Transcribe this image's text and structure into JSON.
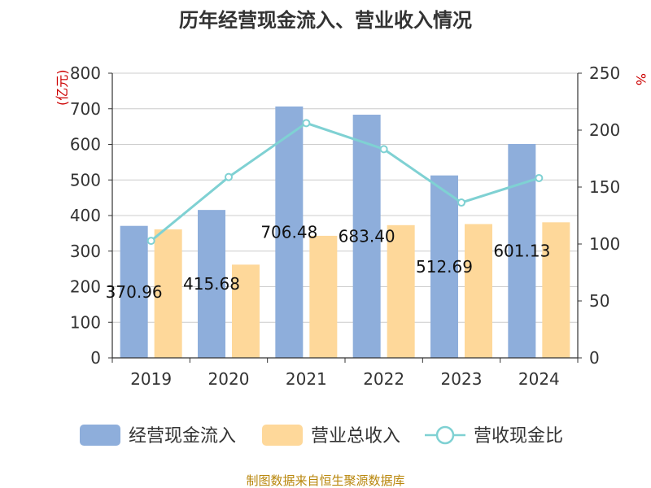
{
  "chart_data": {
    "type": "bar",
    "title": "历年经营现金流入、营业收入情况",
    "categories": [
      "2019",
      "2020",
      "2021",
      "2022",
      "2023",
      "2024"
    ],
    "y_left": {
      "unit": "(亿元)",
      "ylim": [
        0,
        800
      ],
      "ticks": [
        0,
        100,
        200,
        300,
        400,
        500,
        600,
        700,
        800
      ]
    },
    "y_right": {
      "unit": "%",
      "ylim": [
        0,
        250
      ],
      "ticks": [
        0,
        50,
        100,
        150,
        200,
        250
      ]
    },
    "series": [
      {
        "name": "经营现金流入",
        "type": "bar",
        "axis": "left",
        "color": "#8eaedb",
        "values": [
          370.96,
          415.68,
          706.48,
          683.4,
          512.69,
          601.13
        ],
        "labels": [
          "370.96",
          "415.68",
          "706.48",
          "683.40",
          "512.69",
          "601.13"
        ]
      },
      {
        "name": "营业总收入",
        "type": "bar",
        "axis": "left",
        "color": "#fed89a",
        "values": [
          361,
          262,
          343,
          373,
          376,
          381
        ]
      },
      {
        "name": "营收现金比",
        "type": "line",
        "axis": "right",
        "color": "#7fd1d3",
        "values": [
          102.8,
          158.8,
          206.2,
          183.3,
          136.4,
          157.9
        ]
      }
    ],
    "grid": true,
    "legend": "bottom",
    "source": "制图数据来自恒生聚源数据库"
  }
}
